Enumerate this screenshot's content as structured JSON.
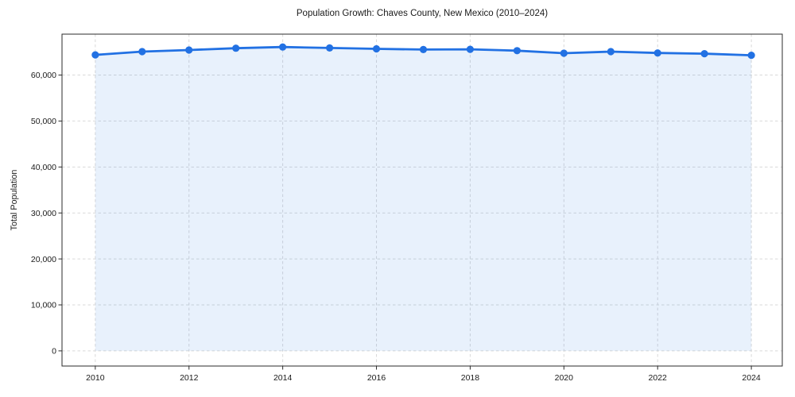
{
  "chart_data": {
    "type": "area",
    "title": "Population Growth: Chaves County, New Mexico (2010–2024)",
    "xlabel": "",
    "ylabel": "Total Population",
    "x": [
      2010,
      2011,
      2012,
      2013,
      2014,
      2015,
      2016,
      2017,
      2018,
      2019,
      2020,
      2021,
      2022,
      2023,
      2024
    ],
    "values": [
      64400,
      65100,
      65450,
      65850,
      66100,
      65900,
      65700,
      65550,
      65600,
      65300,
      64750,
      65100,
      64800,
      64650,
      64300
    ],
    "xticks": [
      2010,
      2012,
      2014,
      2016,
      2018,
      2020,
      2022,
      2024
    ],
    "xtick_labels": [
      "2010",
      "2012",
      "2014",
      "2016",
      "2018",
      "2020",
      "2022",
      "2024"
    ],
    "ytick_values": [
      0,
      10000,
      20000,
      30000,
      40000,
      50000,
      60000
    ],
    "ytick_labels": [
      "0",
      "10,000",
      "20,000",
      "30,000",
      "40,000",
      "50,000",
      "60,000"
    ],
    "xlim": [
      2009.29,
      2024.66
    ],
    "ylim": [
      -3300,
      68900
    ],
    "fill_baseline": 0,
    "grid": true,
    "grid_style": "dashed",
    "legend": false,
    "marker": "circle",
    "colors": {
      "line": "#2271e3",
      "marker": "#2271e3",
      "fill": "rgba(34,113,227,0.10)",
      "grid": "#d9d9d9",
      "spine": "#2b2b2b",
      "text": "#1a1a1a",
      "background": "#ffffff"
    }
  }
}
